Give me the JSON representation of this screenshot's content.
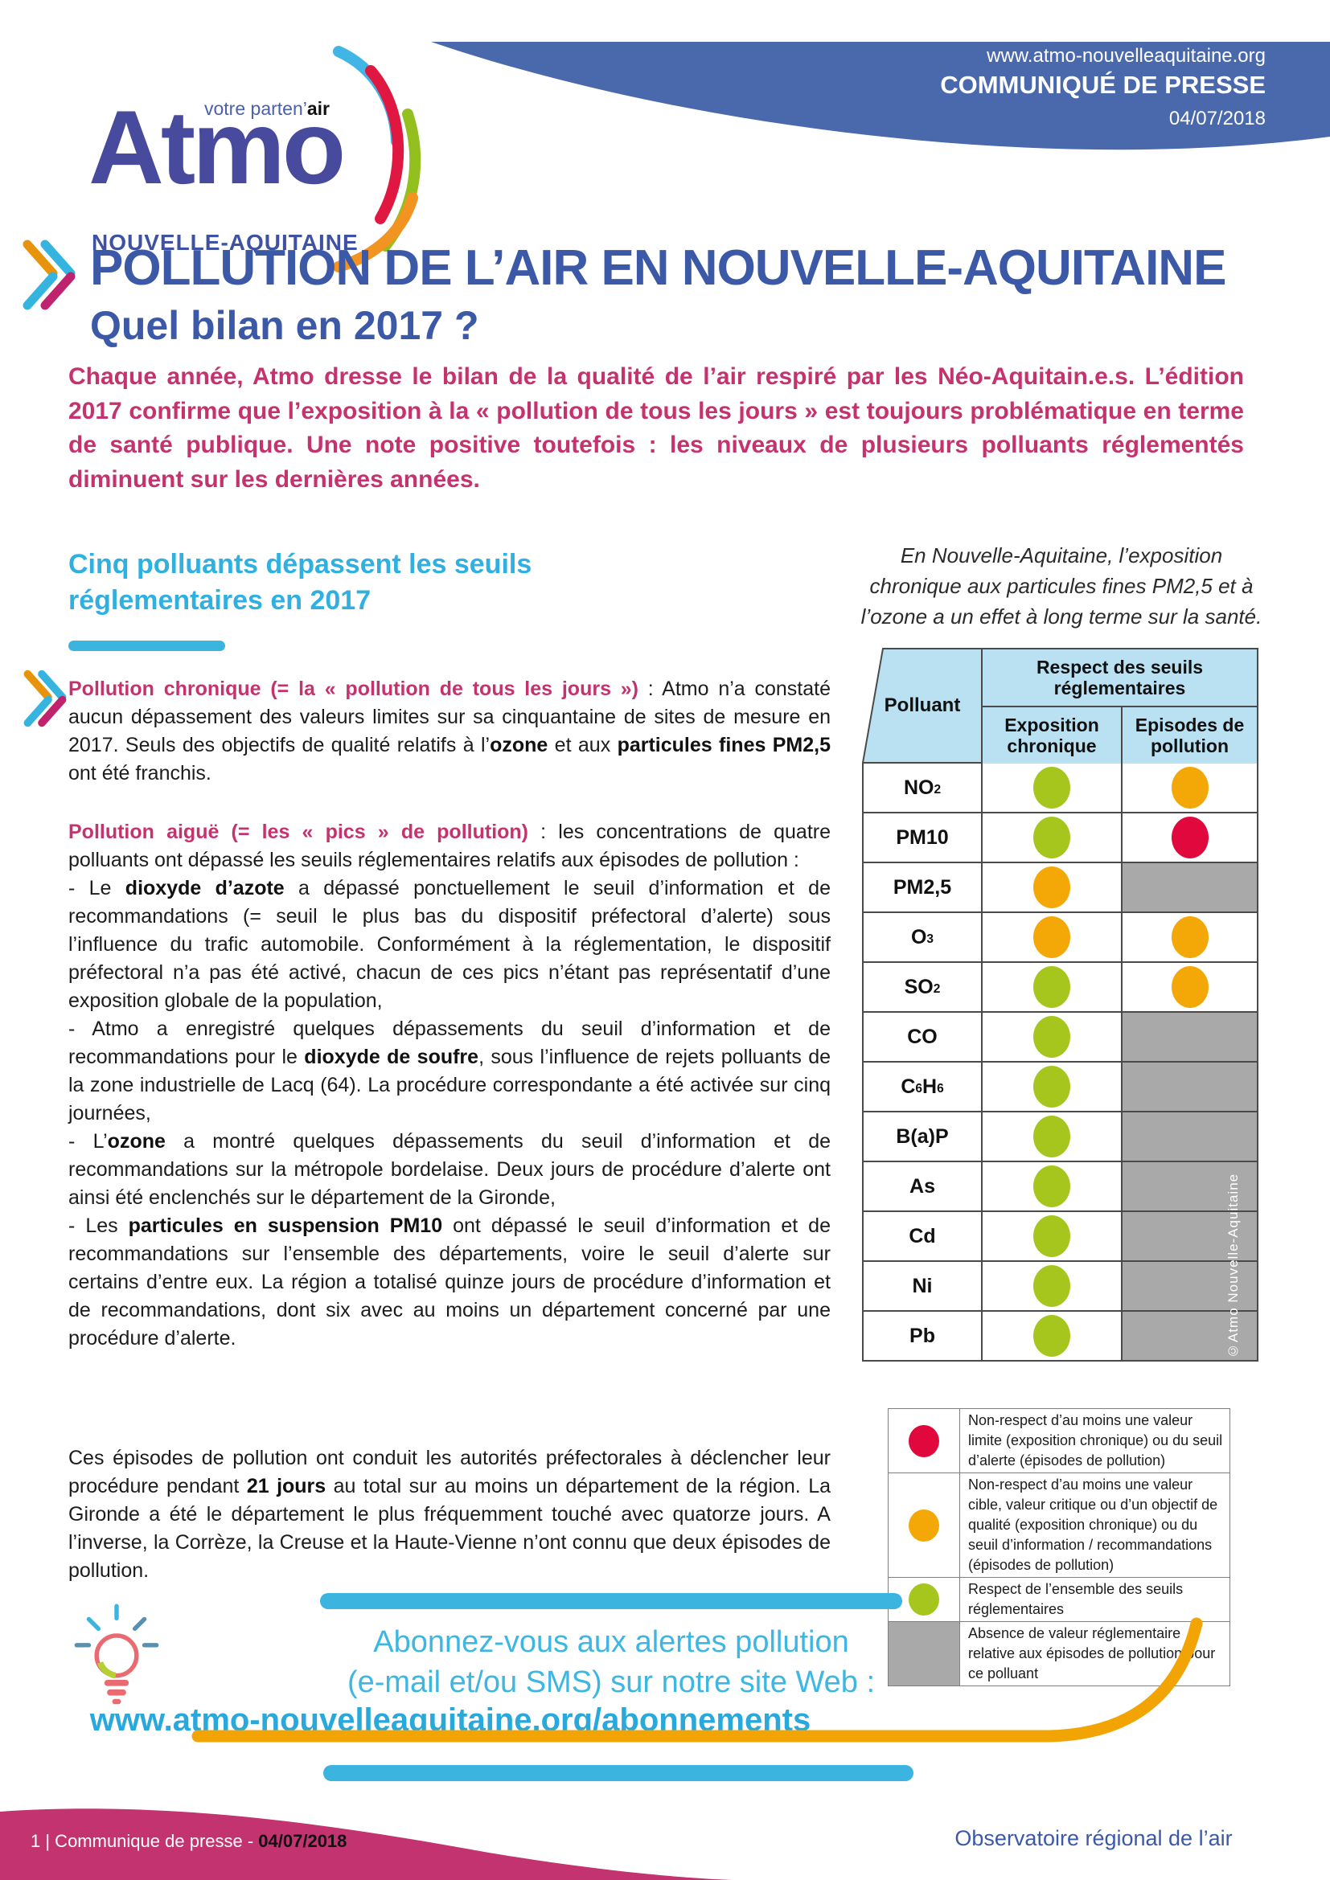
{
  "banner": {
    "website": "www.atmo-nouvelleaquitaine.org",
    "kicker": "COMMUNIQUÉ DE PRESSE",
    "date": "04/07/2018"
  },
  "logo": {
    "tagline": [
      {
        "t": "votre parten’"
      },
      {
        "t": "air",
        "b": true
      }
    ],
    "name": "Atmo",
    "region": "NOUVELLE-AQUITAINE"
  },
  "title": {
    "line1": "POLLUTION DE L’AIR EN NOUVELLE-AQUITAINE",
    "line2": "Quel bilan en 2017 ?"
  },
  "intro": "Chaque année, Atmo dresse le bilan de la qualité de l’air respiré par les Néo-Aquitain.e.s. L’édition 2017 confirme que l’exposition à la « pollution de tous les jours » est toujours problématique en terme de santé publique. Une note positive toutefois : les niveaux de plusieurs polluants réglementés diminuent sur les dernières années.",
  "section": {
    "heading": "Cinq polluants dépassent les seuils\nréglementaires en 2017"
  },
  "aside": {
    "note": "En Nouvelle-Aquitaine, l’exposition\nchronique aux particules fines PM2,5 et à\nl’ozone a un effet à long terme sur la santé."
  },
  "paragraphs": {
    "chronic": [
      {
        "t": "Pollution chronique (= la « pollution de tous les jours »)",
        "b": true,
        "mag": true
      },
      {
        "t": " : Atmo n’a constaté aucun dépassement des valeurs limites sur sa cinquantaine de sites de mesure en 2017. Seuls des objectifs de qualité relatifs à l’"
      },
      {
        "t": "ozone",
        "b": true
      },
      {
        "t": " et aux "
      },
      {
        "t": "particules fines PM2,5",
        "b": true
      },
      {
        "t": " ont été franchis."
      }
    ],
    "acute": [
      {
        "t": "Pollution aiguë (= les « pics » de pollution)",
        "b": true,
        "mag": true
      },
      {
        "t": " : les concentrations de quatre polluants ont dépassé les seuils réglementaires relatifs aux épisodes de pollution :\n- Le "
      },
      {
        "t": "dioxyde d’azote",
        "b": true
      },
      {
        "t": " a dépassé ponctuellement le seuil d’information et de recommandations (= seuil le plus bas du dispositif préfectoral d’alerte) sous l’influence du trafic automobile. Conformément à la réglementation, le dispositif préfectoral n’a pas été activé, chacun de ces pics n’étant pas représentatif d’une exposition globale de la population,\n- Atmo a enregistré quelques dépassements du seuil d’information et de recommandations pour le "
      },
      {
        "t": "dioxyde de soufre",
        "b": true
      },
      {
        "t": ", sous l’influence de rejets polluants de la zone industrielle de Lacq (64). La procédure correspondante a été activée sur cinq journées,\n- L’"
      },
      {
        "t": "ozone",
        "b": true
      },
      {
        "t": " a montré quelques dépassements du seuil d’information et de recommandations sur la métropole bordelaise. Deux jours de procédure d’alerte ont ainsi été enclenchés sur le département de la Gironde,\n- Les "
      },
      {
        "t": "particules en suspension PM10",
        "b": true
      },
      {
        "t": " ont dépassé le seuil d’information et de recommandations sur l’ensemble des départements, voire le seuil d’alerte sur certains d’entre eux. La région a totalisé quinze jours de procédure d’information et de recommandations, dont six avec au moins un département concerné par une procédure d’alerte."
      }
    ],
    "episodes": [
      {
        "t": "Ces épisodes de pollution ont conduit les autorités préfectorales à déclencher leur procédure pendant "
      },
      {
        "t": "21 jours",
        "b": true
      },
      {
        "t": " au total sur au moins un département de la région. La Gironde a été le département le plus fréquemment touché avec quatorze jours. A l’inverse, la Corrèze, la Creuse et la Haute-Vienne n’ont connu que deux épisodes de pollution."
      }
    ]
  },
  "table": {
    "col_pollutant": "Polluant",
    "col_group": "Respect des seuils réglementaires",
    "col_chronic": "Exposition chronique",
    "col_episodes": "Episodes de pollution",
    "credit": "©Atmo Nouvelle-Aquitaine",
    "rows": [
      {
        "name": [
          "NO",
          {
            "sub": "2"
          }
        ],
        "chronic": "green",
        "episodes": "orange"
      },
      {
        "name": [
          "PM10"
        ],
        "chronic": "green",
        "episodes": "red"
      },
      {
        "name": [
          "PM2,5"
        ],
        "chronic": "orange",
        "episodes": "gray"
      },
      {
        "name": [
          "O",
          {
            "sub": "3"
          }
        ],
        "chronic": "orange",
        "episodes": "orange"
      },
      {
        "name": [
          "SO",
          {
            "sub": "2"
          }
        ],
        "chronic": "green",
        "episodes": "orange"
      },
      {
        "name": [
          "CO"
        ],
        "chronic": "green",
        "episodes": "gray"
      },
      {
        "name": [
          "C",
          {
            "sub": "6"
          },
          "H",
          {
            "sub": "6"
          }
        ],
        "chronic": "green",
        "episodes": "gray"
      },
      {
        "name": [
          "B(a)P"
        ],
        "chronic": "green",
        "episodes": "gray"
      },
      {
        "name": [
          "As"
        ],
        "chronic": "green",
        "episodes": "gray"
      },
      {
        "name": [
          "Cd"
        ],
        "chronic": "green",
        "episodes": "gray"
      },
      {
        "name": [
          "Ni"
        ],
        "chronic": "green",
        "episodes": "gray"
      },
      {
        "name": [
          "Pb"
        ],
        "chronic": "green",
        "episodes": "gray"
      }
    ]
  },
  "legend": {
    "rows": [
      {
        "dot": "red",
        "text": "Non-respect d’au moins une valeur limite (exposition chronique) ou du seuil d’alerte (épisodes de pollution)"
      },
      {
        "dot": "orange",
        "text": "Non-respect d’au moins une valeur cible, valeur critique ou d’un objectif de qualité (exposition chronique) ou du seuil d’information / recommandations (épisodes de pollution)"
      },
      {
        "dot": "green",
        "text": "Respect de l’ensemble des seuils réglementaires"
      },
      {
        "dot": "gray",
        "text": "Absence de valeur réglementaire relative aux épisodes de pollution pour ce polluant"
      }
    ]
  },
  "cta": {
    "line1": "Abonnez-vous aux alertes pollution",
    "line2": "(e-mail et/ou SMS) sur notre site Web :",
    "url": "www.atmo-nouvelleaquitaine.org/abonnements"
  },
  "footer": {
    "left": [
      {
        "t": "1 |  Communique de presse - "
      },
      {
        "t": "04/07/2018",
        "b": true
      }
    ],
    "right": "Observatoire régional de l’air"
  },
  "colors": {
    "green": "#a6c51d",
    "orange": "#f4a808",
    "red": "#e0083d",
    "gray": "#a9a9a9",
    "banner_blue": "#4a69ad",
    "title_blue": "#3c59a8",
    "magenta": "#c5336f",
    "cyan": "#3cb4e0",
    "table_header_blue": "#b9e1f2"
  }
}
